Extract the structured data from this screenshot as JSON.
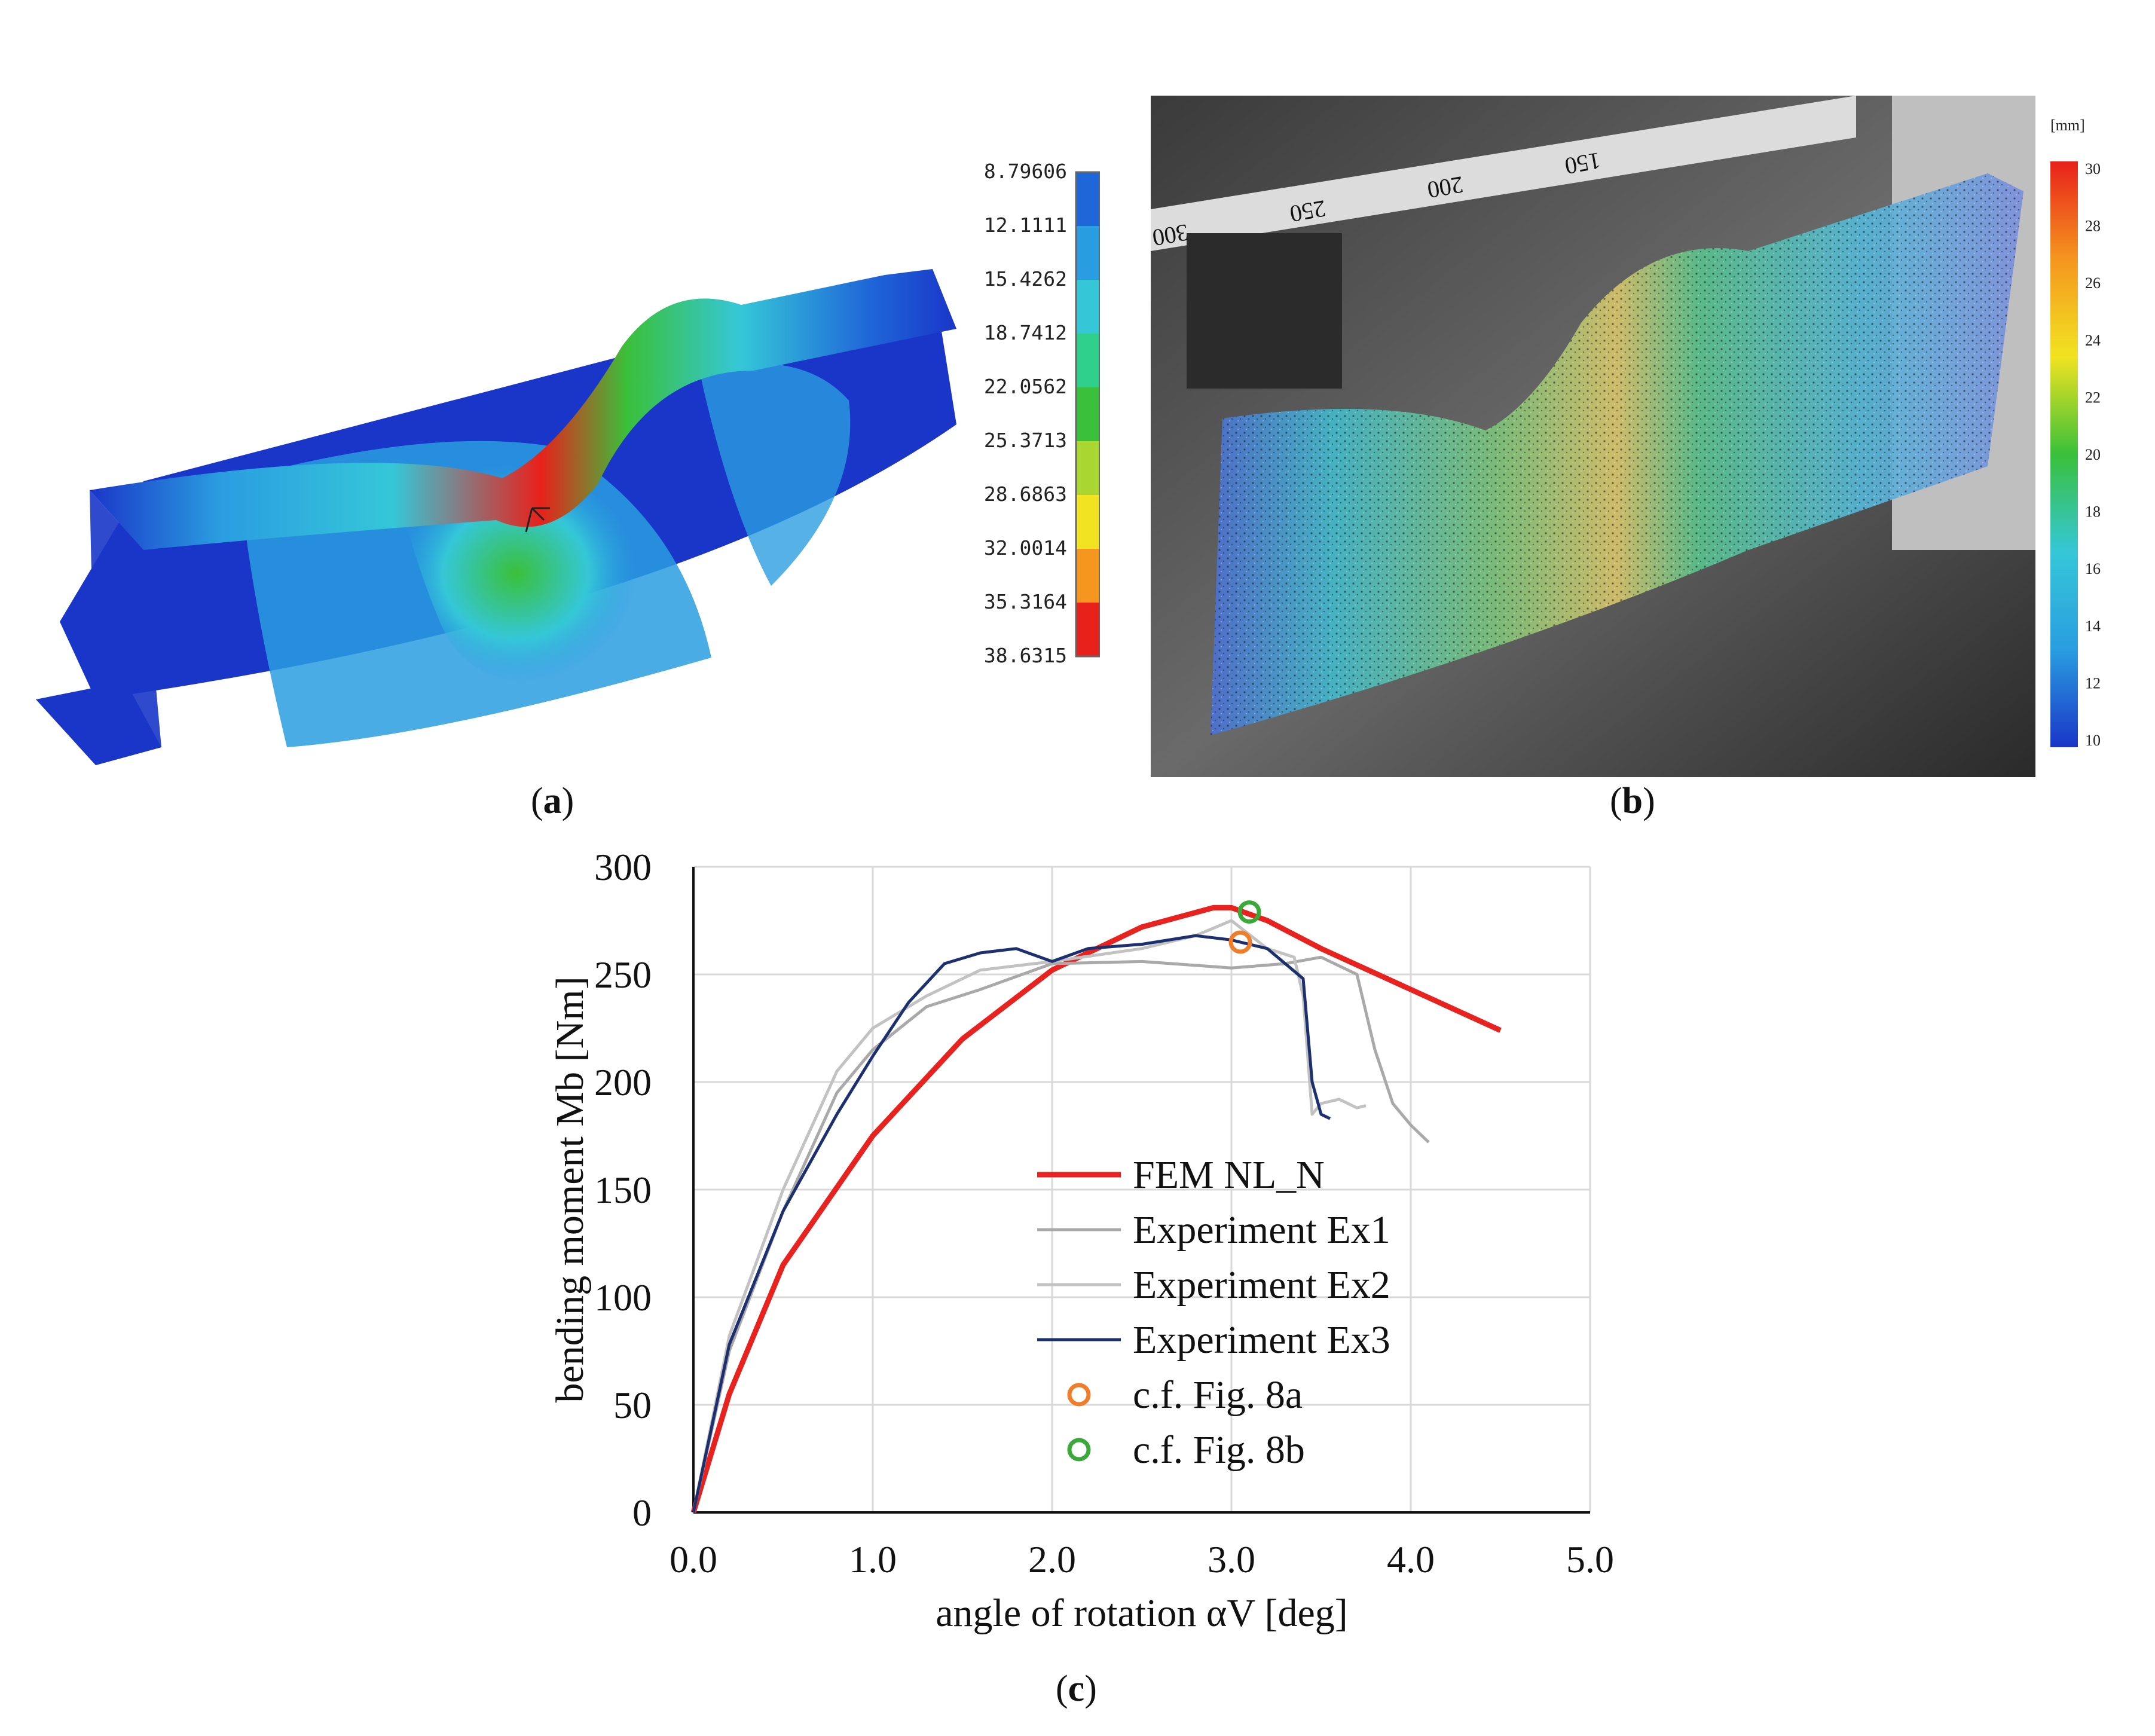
{
  "figure": {
    "captions": {
      "a": "a",
      "b": "b",
      "c": "c"
    }
  },
  "panel_a": {
    "legend_values": [
      "8.79606",
      "12.1111",
      "15.4262",
      "18.7412",
      "22.0562",
      "25.3713",
      "28.6863",
      "32.0014",
      "35.3164",
      "38.6315"
    ],
    "legend_colors": [
      "#1a36c8",
      "#1f66d8",
      "#2a9de0",
      "#35c7d8",
      "#2fcf8c",
      "#3ac03a",
      "#a9d631",
      "#f1e321",
      "#f5961f",
      "#e8211b"
    ]
  },
  "panel_b": {
    "unit_label": "[mm]",
    "legend_ticks": [
      "30",
      "28",
      "26",
      "24",
      "22",
      "20",
      "18",
      "16",
      "14",
      "12",
      "10"
    ],
    "ruler_labels": [
      "300",
      "250",
      "200",
      "150"
    ]
  },
  "chart_data": {
    "type": "line",
    "xlabel": "angle of rotation αV [deg]",
    "ylabel": "bending moment Mb [Nm]",
    "xlim": [
      0,
      5
    ],
    "ylim": [
      0,
      300
    ],
    "xticks": [
      "0.0",
      "1.0",
      "2.0",
      "3.0",
      "4.0",
      "5.0"
    ],
    "yticks": [
      "0",
      "50",
      "100",
      "150",
      "200",
      "250",
      "300"
    ],
    "grid": true,
    "legend_position": "lower-right",
    "series": [
      {
        "name": "FEM NL_N",
        "color": "#e8231f",
        "kind": "line",
        "x": [
          0,
          0.2,
          0.5,
          1.0,
          1.5,
          2.0,
          2.5,
          2.9,
          3.0,
          3.2,
          3.5,
          4.0,
          4.5
        ],
        "y": [
          0,
          55,
          115,
          175,
          220,
          252,
          272,
          281,
          281,
          275,
          262,
          243,
          224
        ]
      },
      {
        "name": "Experiment Ex1",
        "color": "#a9a9a9",
        "kind": "line",
        "x": [
          0,
          0.2,
          0.5,
          0.8,
          1.0,
          1.3,
          1.6,
          2.0,
          2.5,
          3.0,
          3.3,
          3.5,
          3.7,
          3.8,
          3.9,
          4.0,
          4.1
        ],
        "y": [
          0,
          75,
          140,
          195,
          215,
          235,
          243,
          255,
          256,
          253,
          255,
          258,
          250,
          215,
          190,
          180,
          172
        ]
      },
      {
        "name": "Experiment Ex2",
        "color": "#c2c2c2",
        "kind": "line",
        "x": [
          0,
          0.2,
          0.5,
          0.8,
          1.0,
          1.3,
          1.6,
          2.0,
          2.5,
          2.8,
          3.0,
          3.2,
          3.35,
          3.4,
          3.45,
          3.5,
          3.6,
          3.7,
          3.75
        ],
        "y": [
          0,
          82,
          150,
          205,
          225,
          240,
          252,
          256,
          262,
          268,
          275,
          262,
          258,
          240,
          185,
          190,
          192,
          188,
          189
        ]
      },
      {
        "name": "Experiment Ex3",
        "color": "#1c2f6e",
        "kind": "line",
        "x": [
          0,
          0.2,
          0.5,
          0.8,
          1.0,
          1.2,
          1.4,
          1.6,
          1.8,
          2.0,
          2.2,
          2.5,
          2.8,
          3.0,
          3.2,
          3.4,
          3.45,
          3.5,
          3.55
        ],
        "y": [
          0,
          78,
          140,
          185,
          212,
          237,
          255,
          260,
          262,
          256,
          262,
          264,
          268,
          266,
          262,
          248,
          200,
          185,
          183
        ]
      },
      {
        "name": "c.f. Fig. 8a",
        "color": "#f07d2a",
        "kind": "marker",
        "x": [
          3.05
        ],
        "y": [
          265
        ]
      },
      {
        "name": "c.f. Fig. 8b",
        "color": "#3aa93a",
        "kind": "marker",
        "x": [
          3.1
        ],
        "y": [
          279
        ]
      }
    ]
  }
}
